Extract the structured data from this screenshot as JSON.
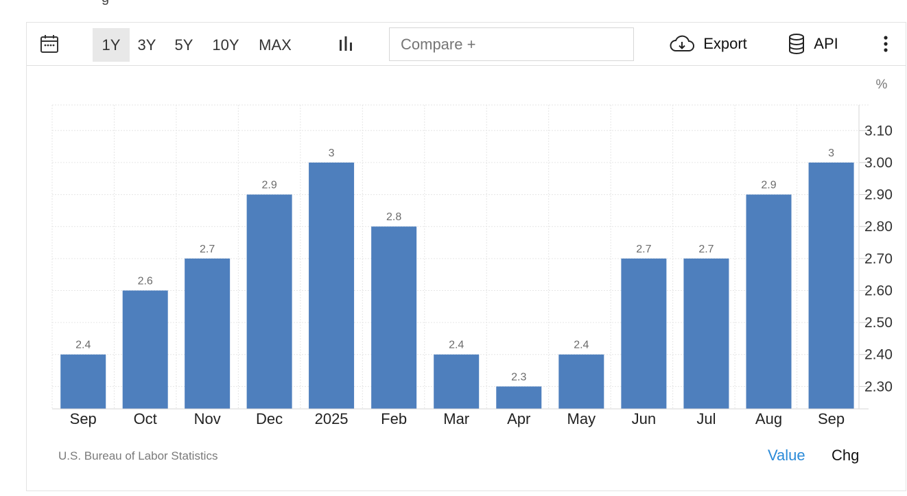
{
  "header_fragment": "g",
  "toolbar": {
    "ranges": [
      "1Y",
      "3Y",
      "5Y",
      "10Y",
      "MAX"
    ],
    "active_range": "1Y",
    "compare_placeholder": "Compare +",
    "export_label": "Export",
    "api_label": "API",
    "icons": {
      "calendar": "calendar-icon",
      "chart_type": "bar-chart-icon",
      "export": "cloud-download-icon",
      "api": "database-icon",
      "more": "more-vertical-icon"
    }
  },
  "chart_data": {
    "type": "bar",
    "categories": [
      "Sep",
      "Oct",
      "Nov",
      "Dec",
      "2025",
      "Feb",
      "Mar",
      "Apr",
      "May",
      "Jun",
      "Jul",
      "Aug",
      "Sep"
    ],
    "values": [
      2.4,
      2.6,
      2.7,
      2.9,
      3,
      2.8,
      2.4,
      2.3,
      2.4,
      2.7,
      2.7,
      2.9,
      3
    ],
    "data_labels": [
      "2.4",
      "2.6",
      "2.7",
      "2.9",
      "3",
      "2.8",
      "2.4",
      "2.3",
      "2.4",
      "2.7",
      "2.7",
      "2.9",
      "3"
    ],
    "y_unit": "%",
    "y_ticks": [
      "2.30",
      "2.40",
      "2.50",
      "2.60",
      "2.70",
      "2.80",
      "2.90",
      "3.00",
      "3.10"
    ],
    "ylim": [
      2.23,
      3.18
    ],
    "y_axis_side": "right",
    "grid": true,
    "bar_color": "#4e7fbd"
  },
  "footer": {
    "source": "U.S. Bureau of Labor Statistics",
    "tabs": [
      "Value",
      "Chg"
    ],
    "active_tab": "Value",
    "active_color": "#2a8ad8"
  }
}
